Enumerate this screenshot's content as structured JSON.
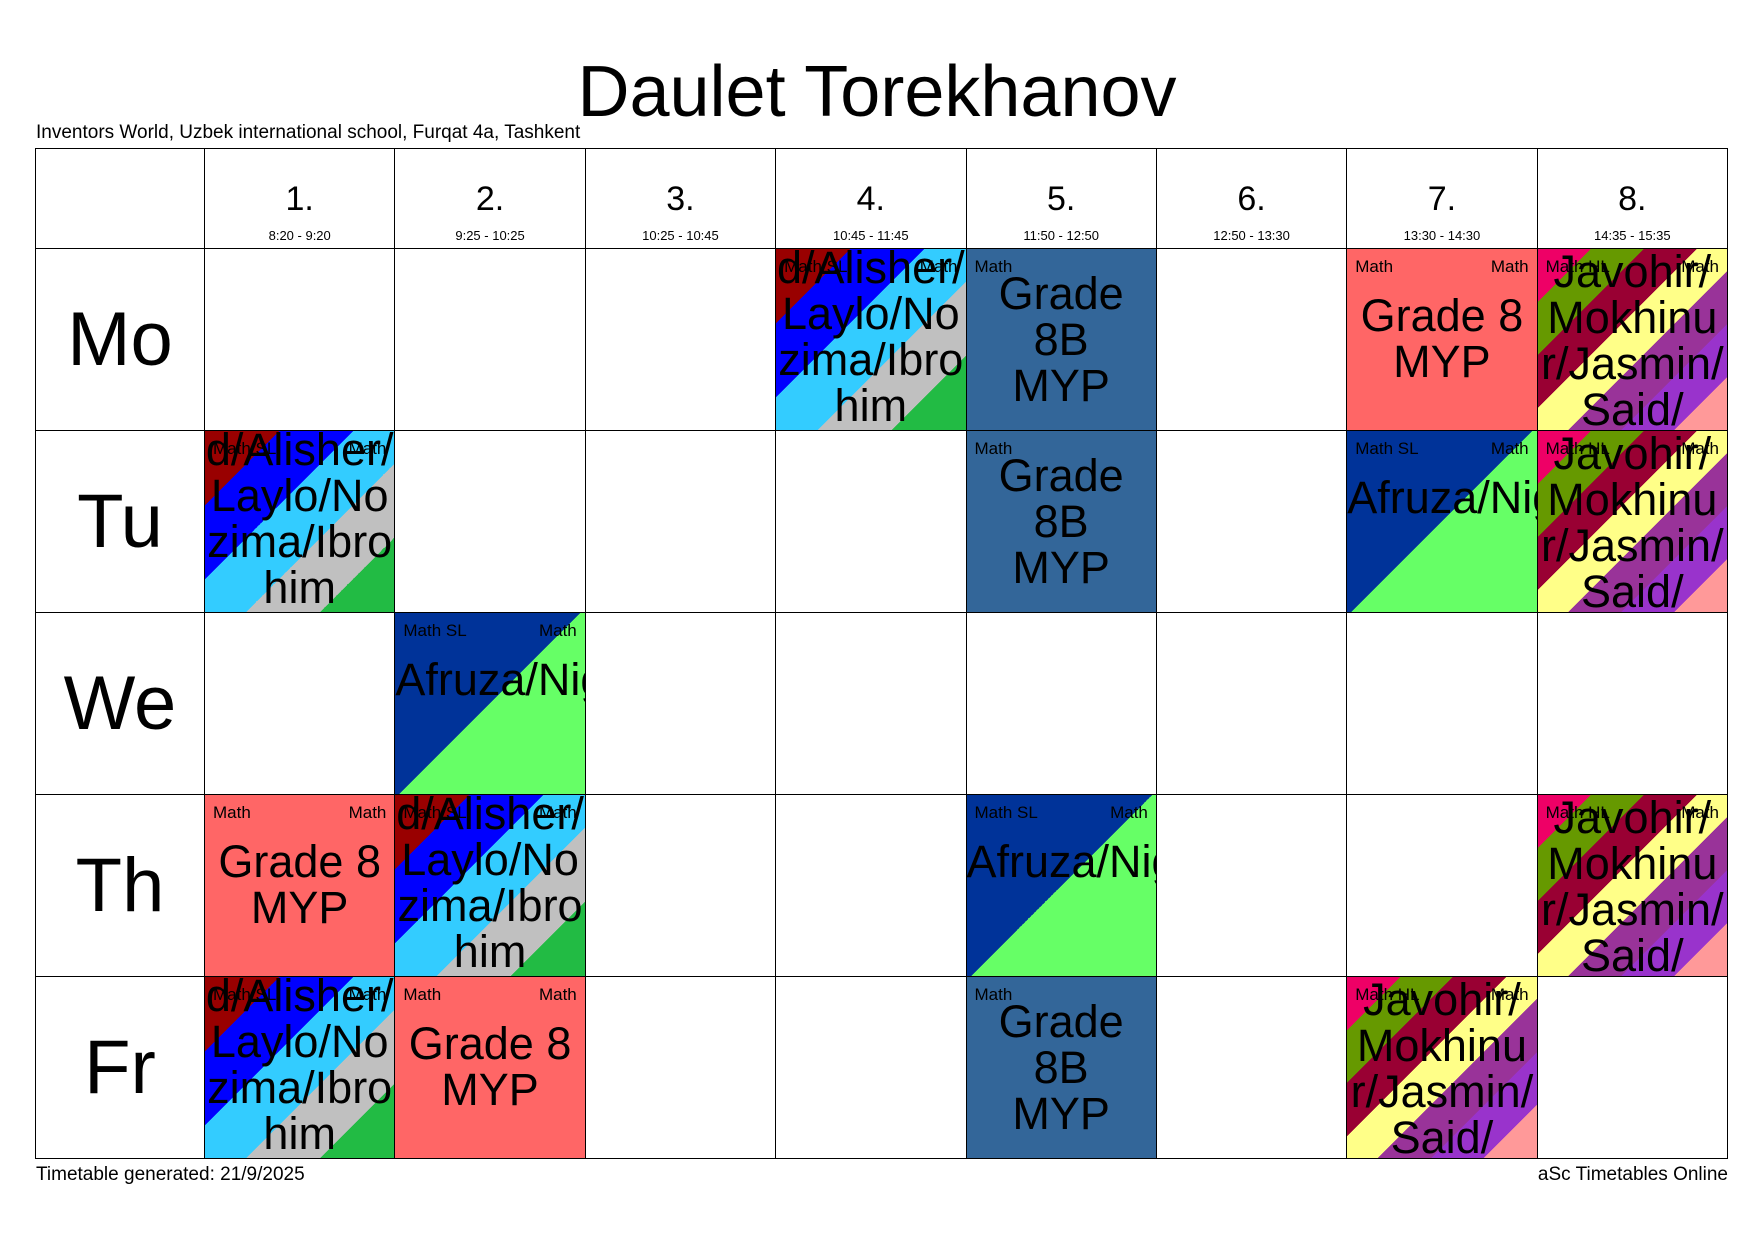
{
  "title": "Daulet Torekhanov",
  "subtitle": "Inventors World, Uzbek international school, Furqat 4a, Tashkent",
  "footer": {
    "generated": "Timetable generated: 21/9/2025",
    "brand": "aSc Timetables Online"
  },
  "periods": [
    {
      "num": "1.",
      "time": "8:20 - 9:20"
    },
    {
      "num": "2.",
      "time": "9:25 - 10:25"
    },
    {
      "num": "3.",
      "time": "10:25 - 10:45"
    },
    {
      "num": "4.",
      "time": "10:45 - 11:45"
    },
    {
      "num": "5.",
      "time": "11:50 - 12:50"
    },
    {
      "num": "6.",
      "time": "12:50 - 13:30"
    },
    {
      "num": "7.",
      "time": "13:30 - 14:30"
    },
    {
      "num": "8.",
      "time": "14:35 - 15:35"
    }
  ],
  "days": [
    "Mo",
    "Tu",
    "We",
    "Th",
    "Fr"
  ],
  "lessons": {
    "diag_sher": {
      "subject_left": "Math SL",
      "subject_right": "Math",
      "group": "Jamshid/Akbar/Bekzod/Jahongir/Dilshod/Hasan/Husan/Sherzod/Alisher/Laylo/Nozima/Ibrohim",
      "colors": [
        "#990000",
        "#0000ff",
        "#33ccff",
        "#c0c0c0",
        "#22bb44"
      ]
    },
    "grade8b": {
      "subject_left": "Math",
      "subject_right": "",
      "group": "Grade 8B MYP",
      "color": "#336699"
    },
    "grade8": {
      "subject_left": "Math",
      "subject_right": "Math",
      "group": "Grade 8 MYP",
      "color": "#ff6666"
    },
    "afruza": {
      "subject_left": "Math SL",
      "subject_right": "Math",
      "group": "Afruza/Nigora",
      "colors": [
        "#003399",
        "#66ff66"
      ]
    },
    "javohir": {
      "subject_left": "Math HL",
      "subject_right": "Math",
      "group": "Javohir/Mokhinur/Jasmin/Said/",
      "colors": [
        "#ee0066",
        "#669900",
        "#990033",
        "#ffff88",
        "#993399",
        "#9933cc",
        "#ff9999"
      ]
    }
  }
}
